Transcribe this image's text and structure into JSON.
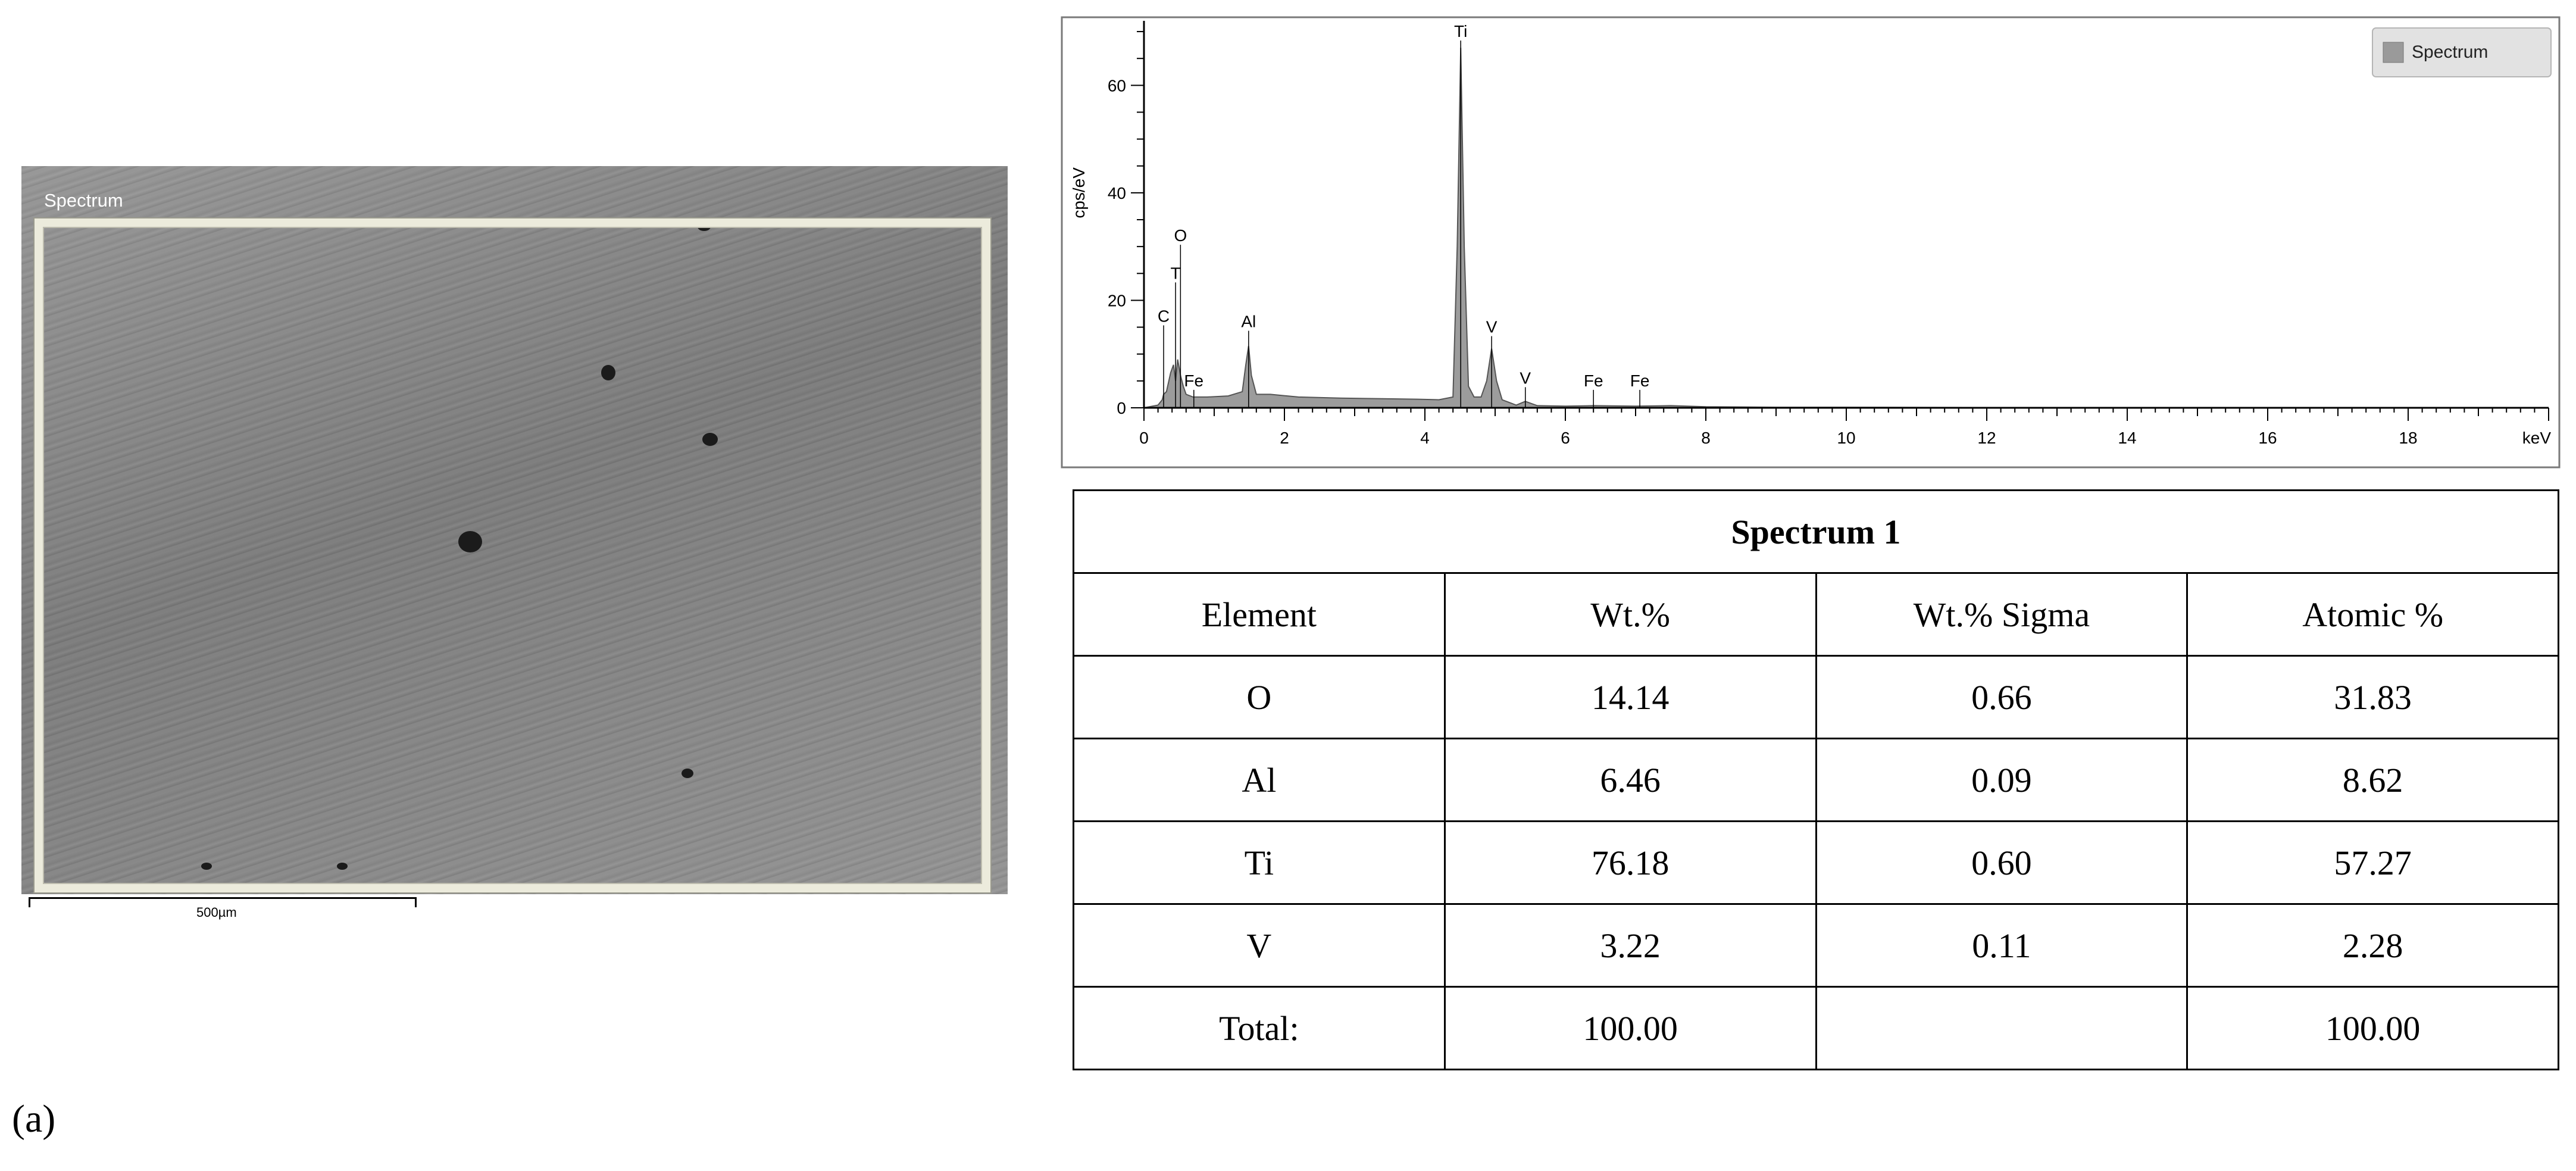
{
  "sem_image": {
    "region_label": "Spectrum",
    "scale_bar_label": "500µm"
  },
  "chart_data": {
    "type": "area",
    "xlabel": "keV",
    "ylabel": "cps/eV",
    "xlim": [
      0,
      20
    ],
    "ylim": [
      0,
      72
    ],
    "x_ticks": [
      0,
      2,
      4,
      6,
      8,
      10,
      12,
      14,
      16,
      18
    ],
    "y_ticks": [
      0,
      20,
      40,
      60
    ],
    "legend": {
      "entries": [
        "Spectrum"
      ],
      "position": "top-right"
    },
    "series": [
      {
        "name": "Spectrum",
        "x": [
          0.0,
          0.2,
          0.26,
          0.28,
          0.32,
          0.38,
          0.42,
          0.45,
          0.48,
          0.52,
          0.56,
          0.6,
          0.7,
          0.9,
          1.2,
          1.4,
          1.45,
          1.49,
          1.53,
          1.6,
          1.8,
          2.2,
          2.8,
          3.4,
          3.9,
          4.2,
          4.4,
          4.46,
          4.51,
          4.56,
          4.62,
          4.7,
          4.8,
          4.88,
          4.95,
          5.02,
          5.1,
          5.3,
          5.43,
          5.6,
          6.0,
          6.4,
          7.0,
          7.5,
          8.0,
          9.0,
          10,
          12,
          14,
          16,
          18,
          20
        ],
        "y": [
          0,
          0.5,
          1.5,
          2.5,
          3,
          6.5,
          8,
          5,
          9,
          6,
          4,
          2.5,
          2,
          2,
          2.2,
          3,
          8,
          11.5,
          6,
          2.5,
          2.5,
          2.0,
          1.8,
          1.7,
          1.6,
          1.5,
          2,
          30,
          67,
          30,
          4,
          2,
          2,
          5,
          11,
          5,
          1.5,
          0.5,
          1.2,
          0.4,
          0.3,
          0.4,
          0.3,
          0.4,
          0.2,
          0.1,
          0.1,
          0.05,
          0.05,
          0.05,
          0.05,
          0
        ]
      }
    ],
    "annotations": [
      {
        "text": "C",
        "x": 0.28,
        "y": 16
      },
      {
        "text": "T",
        "x": 0.45,
        "y": 24
      },
      {
        "text": "O",
        "x": 0.52,
        "y": 31
      },
      {
        "text": "Fe",
        "x": 0.71,
        "y": 4
      },
      {
        "text": "Al",
        "x": 1.49,
        "y": 15
      },
      {
        "text": "Ti",
        "x": 4.51,
        "y": 69
      },
      {
        "text": "V",
        "x": 4.95,
        "y": 14
      },
      {
        "text": "V",
        "x": 5.43,
        "y": 4.5
      },
      {
        "text": "Fe",
        "x": 6.4,
        "y": 4
      },
      {
        "text": "Fe",
        "x": 7.06,
        "y": 4
      }
    ]
  },
  "table": {
    "title": "Spectrum 1",
    "headers": [
      "Element",
      "Wt.%",
      "Wt.% Sigma",
      "Atomic %"
    ],
    "rows": [
      [
        "O",
        "14.14",
        "0.66",
        "31.83"
      ],
      [
        "Al",
        "6.46",
        "0.09",
        "8.62"
      ],
      [
        "Ti",
        "76.18",
        "0.60",
        "57.27"
      ],
      [
        "V",
        "3.22",
        "0.11",
        "2.28"
      ],
      [
        "Total:",
        "100.00",
        "",
        "100.00"
      ]
    ]
  },
  "panel_label": "(a)"
}
